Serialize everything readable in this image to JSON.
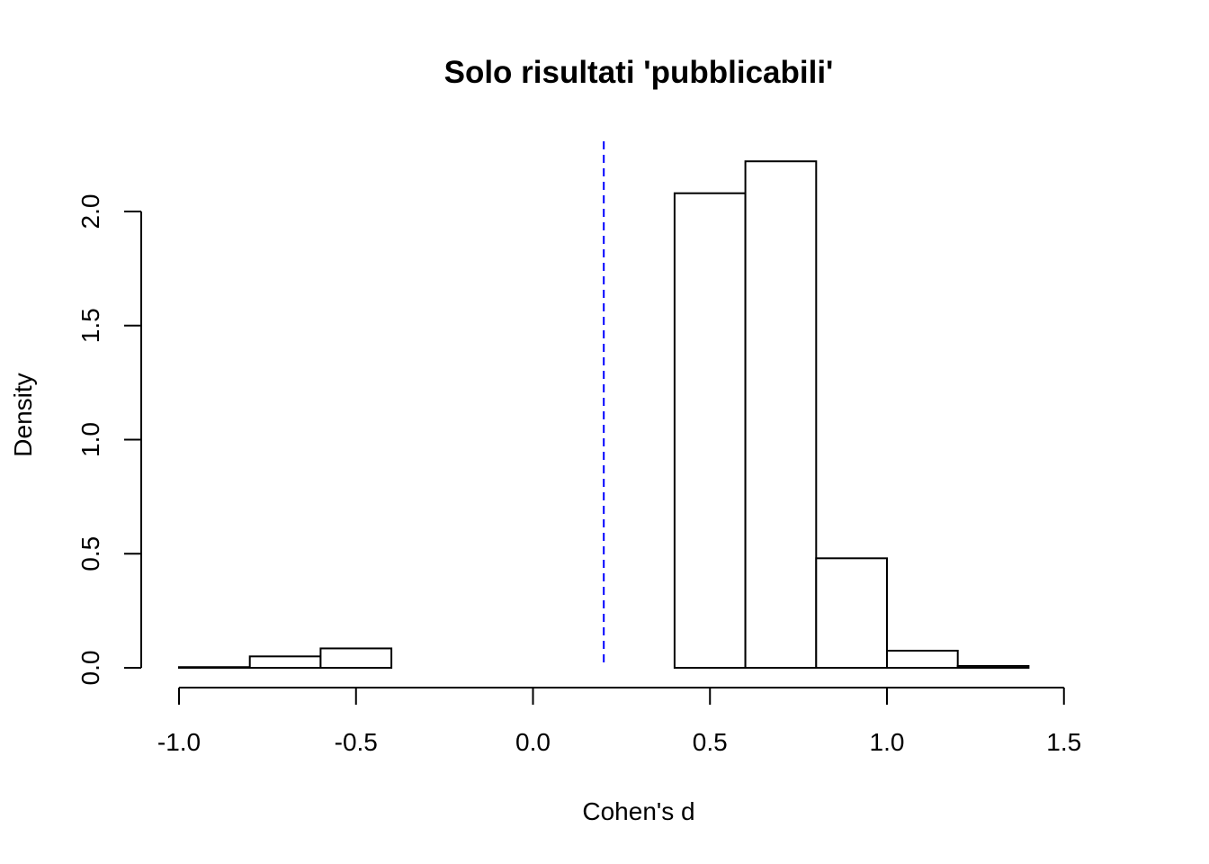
{
  "chart_data": {
    "type": "bar",
    "title": "Solo risultati 'pubblicabili'",
    "xlabel": "Cohen's d",
    "ylabel": "Density",
    "xlim": [
      -1.0,
      1.6
    ],
    "ylim": [
      0,
      2.3
    ],
    "x_ticks": [
      "-1.0",
      "-0.5",
      "0.0",
      "0.5",
      "1.0",
      "1.5"
    ],
    "x_tick_values": [
      -1.0,
      -0.5,
      0.0,
      0.5,
      1.0,
      1.5
    ],
    "y_ticks": [
      "0.0",
      "0.5",
      "1.0",
      "1.5",
      "2.0"
    ],
    "y_tick_values": [
      0.0,
      0.5,
      1.0,
      1.5,
      2.0
    ],
    "bins": [
      {
        "x0": -1.0,
        "x1": -0.8,
        "density": 0.003
      },
      {
        "x0": -0.8,
        "x1": -0.6,
        "density": 0.05
      },
      {
        "x0": -0.6,
        "x1": -0.4,
        "density": 0.085
      },
      {
        "x0": -0.4,
        "x1": -0.2,
        "density": 0.0
      },
      {
        "x0": -0.2,
        "x1": 0.0,
        "density": 0.0
      },
      {
        "x0": 0.0,
        "x1": 0.2,
        "density": 0.0
      },
      {
        "x0": 0.2,
        "x1": 0.4,
        "density": 0.0
      },
      {
        "x0": 0.4,
        "x1": 0.6,
        "density": 2.08
      },
      {
        "x0": 0.6,
        "x1": 0.8,
        "density": 2.22
      },
      {
        "x0": 0.8,
        "x1": 1.0,
        "density": 0.48
      },
      {
        "x0": 1.0,
        "x1": 1.2,
        "density": 0.075
      },
      {
        "x0": 1.2,
        "x1": 1.4,
        "density": 0.008
      },
      {
        "x0": 1.4,
        "x1": 1.6,
        "density": 0.0
      }
    ],
    "reference_line": {
      "x": 0.2,
      "style": "dashed",
      "color": "#0000ff"
    },
    "grid": false,
    "legend": "none"
  }
}
